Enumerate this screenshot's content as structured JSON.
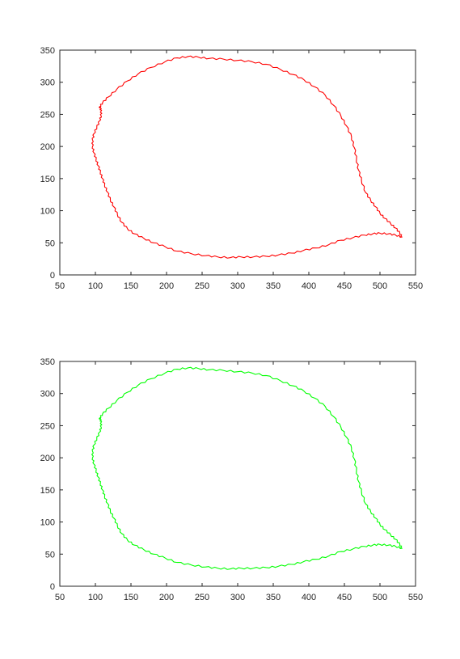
{
  "chart_data": [
    {
      "type": "line",
      "title": "",
      "xlabel": "",
      "ylabel": "",
      "xlim": [
        50,
        550
      ],
      "ylim": [
        0,
        350
      ],
      "xticks": [
        50,
        100,
        150,
        200,
        250,
        300,
        350,
        400,
        450,
        500,
        550
      ],
      "yticks": [
        0,
        50,
        100,
        150,
        200,
        250,
        300,
        350
      ],
      "grid": false,
      "color": "#ff0000",
      "series": [
        {
          "x": [
            230,
            245,
            260,
            280,
            300,
            320,
            340,
            360,
            378,
            393,
            408,
            423,
            435,
            445,
            453,
            460,
            464,
            467,
            470,
            474,
            480,
            487,
            494,
            500,
            507,
            515,
            522,
            528,
            531,
            522,
            512,
            500,
            490,
            478,
            462,
            445,
            428,
            410,
            392,
            376,
            357,
            340,
            322,
            305,
            290,
            272,
            255,
            235,
            215,
            198,
            182,
            168,
            155,
            145,
            137,
            131,
            126,
            121,
            117,
            113,
            110,
            107,
            104,
            101,
            98,
            96,
            96,
            98,
            102,
            106,
            108,
            108,
            107,
            106,
            110,
            118,
            130,
            145,
            160,
            178,
            198,
            215,
            230
          ],
          "y": [
            340,
            339,
            337,
            336,
            334,
            332,
            328,
            320,
            312,
            304,
            293,
            280,
            264,
            248,
            232,
            215,
            198,
            180,
            163,
            147,
            128,
            116,
            106,
            96,
            88,
            80,
            73,
            65,
            59,
            62,
            64,
            65,
            64,
            62,
            58,
            54,
            47,
            42,
            38,
            34,
            31,
            29,
            28,
            28,
            27,
            28,
            30,
            33,
            37,
            44,
            50,
            57,
            64,
            72,
            82,
            94,
            106,
            117,
            129,
            140,
            150,
            160,
            170,
            180,
            190,
            200,
            210,
            220,
            230,
            240,
            248,
            255,
            260,
            262,
            268,
            277,
            289,
            302,
            313,
            323,
            332,
            338,
            340
          ]
        }
      ]
    },
    {
      "type": "line",
      "title": "",
      "xlabel": "",
      "ylabel": "",
      "xlim": [
        50,
        550
      ],
      "ylim": [
        0,
        350
      ],
      "xticks": [
        50,
        100,
        150,
        200,
        250,
        300,
        350,
        400,
        450,
        500,
        550
      ],
      "yticks": [
        0,
        50,
        100,
        150,
        200,
        250,
        300,
        350
      ],
      "grid": false,
      "color": "#00ff00",
      "series": [
        {
          "x": [
            230,
            245,
            260,
            280,
            300,
            320,
            340,
            360,
            378,
            393,
            408,
            423,
            435,
            445,
            453,
            460,
            464,
            467,
            470,
            474,
            480,
            487,
            494,
            500,
            507,
            515,
            522,
            528,
            531,
            522,
            512,
            500,
            490,
            478,
            462,
            445,
            428,
            410,
            392,
            376,
            357,
            340,
            322,
            305,
            290,
            272,
            255,
            235,
            215,
            198,
            182,
            168,
            155,
            145,
            137,
            131,
            126,
            121,
            117,
            113,
            110,
            107,
            104,
            101,
            98,
            96,
            96,
            98,
            102,
            106,
            108,
            108,
            107,
            106,
            110,
            118,
            130,
            145,
            160,
            178,
            198,
            215,
            230
          ],
          "y": [
            340,
            339,
            337,
            336,
            334,
            332,
            328,
            320,
            312,
            304,
            293,
            280,
            264,
            248,
            232,
            215,
            198,
            180,
            163,
            147,
            128,
            116,
            106,
            96,
            88,
            80,
            73,
            65,
            59,
            62,
            64,
            65,
            64,
            62,
            58,
            54,
            47,
            42,
            38,
            34,
            31,
            29,
            28,
            28,
            27,
            28,
            30,
            33,
            37,
            44,
            50,
            57,
            64,
            72,
            82,
            94,
            106,
            117,
            129,
            140,
            150,
            160,
            170,
            180,
            190,
            200,
            210,
            220,
            230,
            240,
            248,
            255,
            260,
            262,
            268,
            277,
            289,
            302,
            313,
            323,
            332,
            338,
            340
          ]
        }
      ]
    }
  ]
}
